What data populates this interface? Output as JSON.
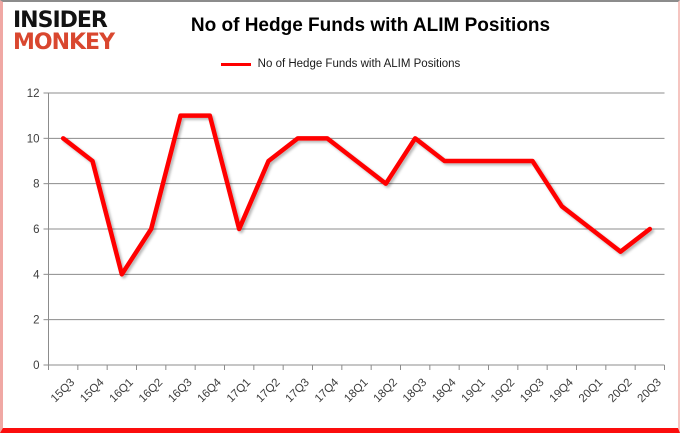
{
  "logo": {
    "line1": "INSIDER",
    "line2": "MONKEY"
  },
  "header": {
    "title": "No of Hedge Funds with ALIM Positions"
  },
  "legend": {
    "label": "No of Hedge Funds with ALIM Positions"
  },
  "chart_data": {
    "type": "line",
    "title": "No of Hedge Funds with ALIM Positions",
    "categories": [
      "15Q3",
      "15Q4",
      "16Q1",
      "16Q2",
      "16Q3",
      "16Q4",
      "17Q1",
      "17Q2",
      "17Q3",
      "17Q4",
      "18Q1",
      "18Q2",
      "18Q3",
      "18Q4",
      "19Q1",
      "19Q2",
      "19Q3",
      "19Q4",
      "20Q1",
      "20Q2",
      "20Q3"
    ],
    "series": [
      {
        "name": "No of Hedge Funds with ALIM Positions",
        "values": [
          10,
          9,
          4,
          6,
          11,
          11,
          6,
          9,
          10,
          10,
          9,
          8,
          10,
          9,
          9,
          9,
          9,
          7,
          6,
          5,
          6
        ]
      }
    ],
    "xlabel": "",
    "ylabel": "",
    "ylim": [
      0,
      12
    ],
    "yticks": [
      0,
      2,
      4,
      6,
      8,
      10,
      12
    ],
    "grid": "horizontal",
    "legend_position": "top",
    "line_color": "#ff0000",
    "grid_color": "#8c8c8c",
    "axis_color": "#8c8c8c",
    "label_color": "#3d3d3d"
  },
  "colors": {
    "logo_black": "#121212",
    "logo_red": "#d9472f",
    "accent_red": "#ff0000",
    "frame_top_gray": "#8c8c8c",
    "frame_side_pink": "#f0a8a4",
    "frame_bottom_red": "#fb0d0d"
  }
}
